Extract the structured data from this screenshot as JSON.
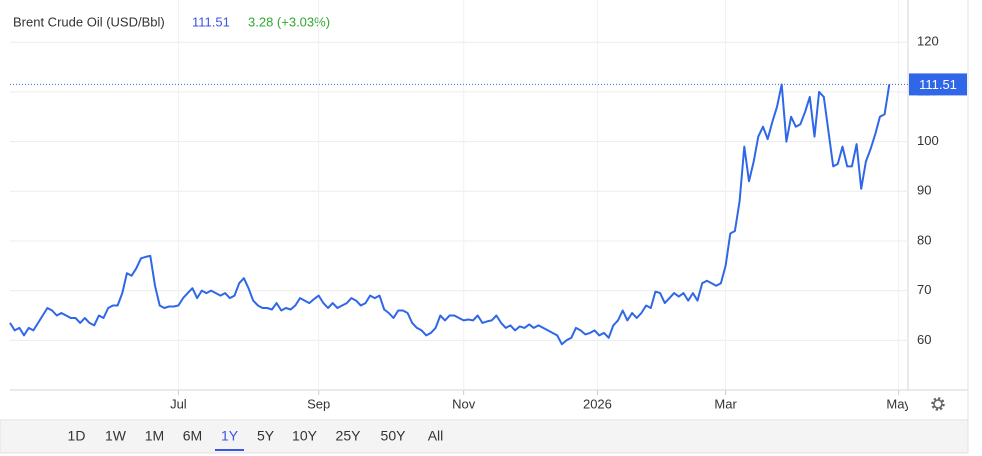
{
  "chart_data": {
    "type": "line",
    "title": "Brent Crude Oil (USD/Bbl)",
    "change": "3.28 (+3.03%)",
    "color": "#2f67e8",
    "values": [
      63.5,
      62,
      62.5,
      61,
      62.5,
      62,
      63.5,
      65,
      66.5,
      66,
      65,
      65.5,
      65,
      64.5,
      64.5,
      63.5,
      64.5,
      63.5,
      63,
      65,
      64.5,
      66.5,
      67,
      67,
      69.5,
      73.5,
      73,
      74.5,
      76.5,
      76.8,
      77,
      71,
      67,
      66.5,
      66.8,
      66.8,
      67,
      68.5,
      69.5,
      70.5,
      68.5,
      70,
      69.5,
      70,
      69.5,
      69,
      69.5,
      68.5,
      69,
      71.5,
      72.5,
      70.5,
      68,
      67,
      66.5,
      66.5,
      66.2,
      67.5,
      66,
      66.5,
      66.2,
      67,
      68.5,
      68,
      67.5,
      68.3,
      69,
      67.5,
      66.5,
      67.5,
      66.5,
      67,
      67.5,
      68.5,
      68,
      67,
      67.5,
      69,
      68.5,
      69,
      66.2,
      65.5,
      64.5,
      66,
      66,
      65.5,
      63.5,
      62.5,
      62,
      61,
      61.5,
      62.5,
      65,
      64,
      65,
      65,
      64.5,
      64,
      64.2,
      64,
      65,
      63.5,
      63.8,
      64,
      65,
      63.5,
      62.5,
      63,
      62,
      62.8,
      62.5,
      63.2,
      62.5,
      63,
      62.5,
      62,
      61.5,
      61,
      59.2,
      60,
      60.5,
      62.5,
      62,
      61.2,
      61.5,
      62,
      61,
      61.5,
      60.5,
      63,
      64,
      66,
      64,
      65.5,
      64.5,
      65.5,
      67,
      66.5,
      69.8,
      69.5,
      67.5,
      68.5,
      69.5,
      68.8,
      69.5,
      68,
      69.5,
      68,
      71.5,
      72,
      71.5,
      71,
      71.5,
      75,
      81.5,
      82,
      88,
      99,
      92,
      96,
      101,
      103,
      100.5,
      104,
      107,
      111.5,
      100,
      105,
      103,
      103.5,
      106,
      109,
      101,
      110,
      109,
      102,
      95,
      95.5,
      99,
      95,
      95,
      99.5,
      90.5,
      96,
      98.5,
      101.5,
      105,
      105.5,
      111.51
    ],
    "xlim": [
      0,
      192
    ],
    "xticks": [
      {
        "value": 36,
        "label": "Jul"
      },
      {
        "value": 66,
        "label": "Sep"
      },
      {
        "value": 97,
        "label": "Nov"
      },
      {
        "value": 125.6,
        "label": "2026"
      },
      {
        "value": 153,
        "label": "Mar"
      },
      {
        "value": 190,
        "label": "May"
      }
    ],
    "ylim": [
      50,
      128.5
    ],
    "yticks": [
      60,
      70,
      80,
      90,
      100,
      110,
      120
    ],
    "grid": true,
    "ranges": [
      "1D",
      "1W",
      "1M",
      "6M",
      "1Y",
      "5Y",
      "10Y",
      "25Y",
      "50Y",
      "All"
    ],
    "active_range": "1Y"
  }
}
